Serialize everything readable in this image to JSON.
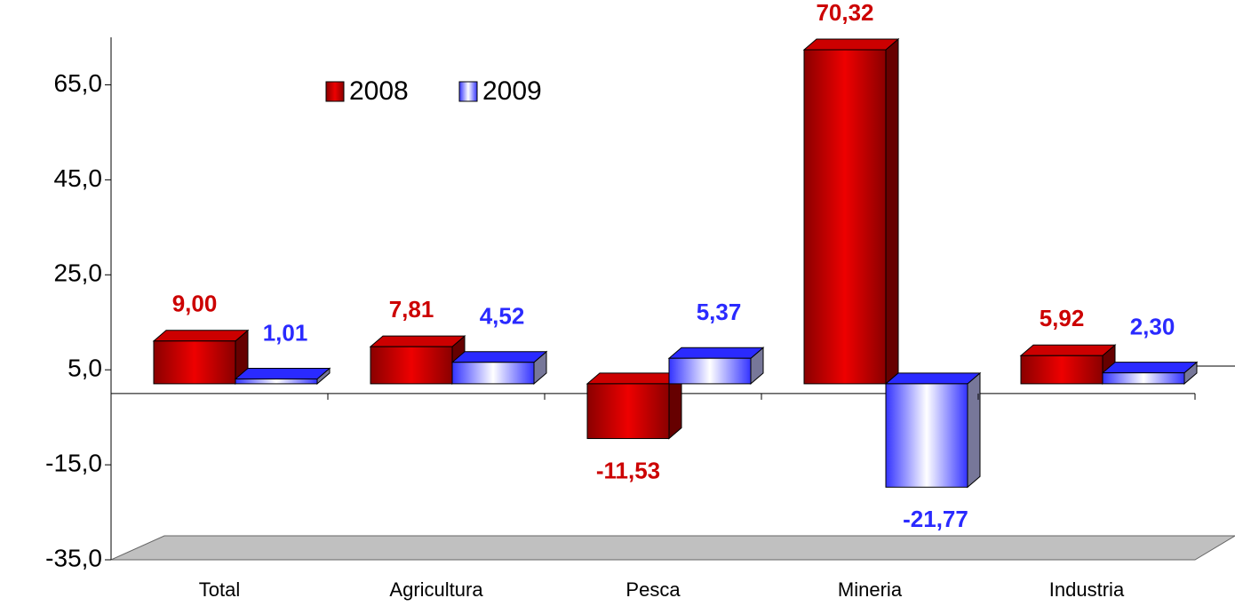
{
  "chart_data": {
    "type": "bar3d",
    "categories": [
      "Total",
      "Agricultura",
      "Pesca",
      "Mineria",
      "Industria"
    ],
    "series": [
      {
        "name": "2008",
        "color": "#cc0000",
        "values": [
          9.0,
          7.81,
          -11.53,
          70.32,
          5.92
        ],
        "value_labels": [
          "9,00",
          "7,81",
          "-11,53",
          "70,32",
          "5,92"
        ]
      },
      {
        "name": "2009",
        "color": "#2a2aff",
        "values": [
          1.01,
          4.52,
          5.37,
          -21.77,
          2.3
        ],
        "value_labels": [
          "1,01",
          "4,52",
          "5,37",
          "-21,77",
          "2,30"
        ]
      }
    ],
    "ylim": [
      -35,
      75
    ],
    "yticks": [
      {
        "value": -35,
        "label": "-35,0"
      },
      {
        "value": -15,
        "label": "-15,0"
      },
      {
        "value": 5,
        "label": "5,0"
      },
      {
        "value": 25,
        "label": "25,0"
      },
      {
        "value": 45,
        "label": "45,0"
      },
      {
        "value": 65,
        "label": "65,0"
      }
    ],
    "legend": "top-left"
  }
}
